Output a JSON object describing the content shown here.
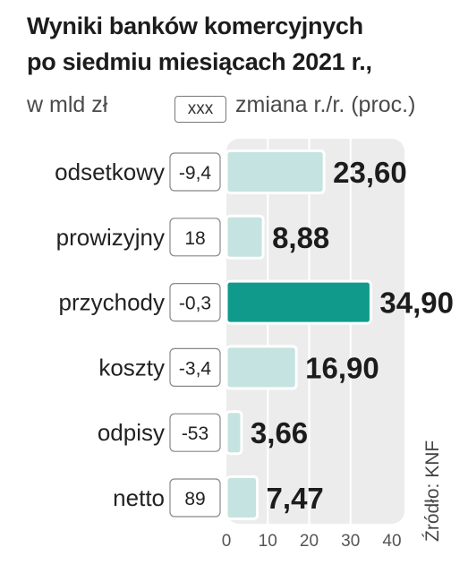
{
  "title_line1": "Wyniki banków komercyjnych",
  "title_line2": "po siedmiu miesiącach 2021 r.,",
  "unit": "w mld zł",
  "legend": {
    "box_text": "xxx",
    "label": "zmiana r./r. (proc.)"
  },
  "source": "Źródło: KNF",
  "colors": {
    "bar": "#c5e3e0",
    "highlight": "#0f9a8c",
    "plot_bg": "#ececec",
    "grid": "#ffffff"
  },
  "chart_data": {
    "type": "bar",
    "orientation": "horizontal",
    "categories": [
      "odsetkowy",
      "prowizyjny",
      "przychody",
      "koszty",
      "odpisy",
      "netto"
    ],
    "values": [
      23.6,
      8.88,
      34.9,
      16.9,
      3.66,
      7.47
    ],
    "value_labels": [
      "23,60",
      "8,88",
      "34,90",
      "16,90",
      "3,66",
      "7,47"
    ],
    "changes": [
      "-9,4",
      "18",
      "-0,3",
      "-3,4",
      "-53",
      "89"
    ],
    "highlighted": "przychody",
    "xlim": [
      0,
      40
    ],
    "xticks": [
      "0",
      "10",
      "20",
      "30",
      "40"
    ]
  }
}
